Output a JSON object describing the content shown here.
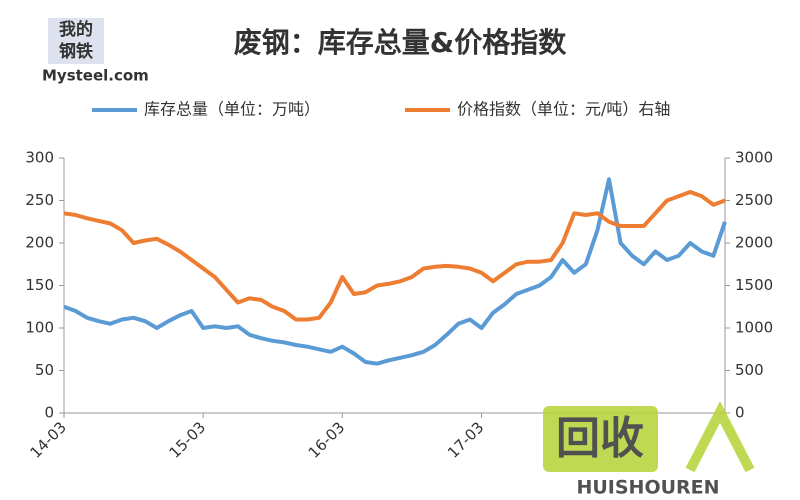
{
  "chart_data": {
    "type": "line",
    "title": "废钢：库存总量&价格指数",
    "logo": {
      "top": "我的",
      "bottom": "钢铁",
      "site": "Mysteel.com"
    },
    "watermark": {
      "text": "回收",
      "sub": "HUISHOUREN"
    },
    "x": [
      "14-03",
      "14-04",
      "14-05",
      "14-06",
      "14-07",
      "14-08",
      "14-09",
      "14-10",
      "14-11",
      "14-12",
      "15-01",
      "15-02",
      "15-03",
      "15-04",
      "15-05",
      "15-06",
      "15-07",
      "15-08",
      "15-09",
      "15-10",
      "15-11",
      "15-12",
      "16-01",
      "16-02",
      "16-03",
      "16-04",
      "16-05",
      "16-06",
      "16-07",
      "16-08",
      "16-09",
      "16-10",
      "16-11",
      "16-12",
      "17-01",
      "17-02",
      "17-03",
      "17-04",
      "17-05",
      "17-06",
      "17-07",
      "17-08",
      "17-09",
      "17-10",
      "17-11",
      "17-12",
      "18-01",
      "18-02",
      "18-03",
      "18-04",
      "18-05",
      "18-06",
      "18-07",
      "18-08",
      "18-09",
      "18-10",
      "18-11",
      "18-12"
    ],
    "xticks": [
      "14-03",
      "15-03",
      "16-03",
      "17-03"
    ],
    "ylim": [
      0,
      300
    ],
    "yticks": [
      0,
      50,
      100,
      150,
      200,
      250,
      300
    ],
    "y2lim": [
      0,
      3000
    ],
    "y2ticks": [
      0,
      500,
      1000,
      1500,
      2000,
      2500,
      3000
    ],
    "series": [
      {
        "name": "库存总量（单位：万吨）",
        "color": "#5b9bd5",
        "values": [
          125,
          120,
          112,
          108,
          105,
          110,
          112,
          108,
          100,
          108,
          115,
          120,
          100,
          102,
          100,
          102,
          92,
          88,
          85,
          83,
          80,
          78,
          75,
          72,
          78,
          70,
          60,
          58,
          62,
          65,
          68,
          72,
          80,
          92,
          105,
          110,
          100,
          118,
          128,
          140,
          145,
          150,
          160,
          180,
          165,
          175,
          215,
          275,
          200,
          185,
          175,
          190,
          180,
          185,
          200,
          190,
          185,
          225
        ]
      },
      {
        "name": "价格指数（单位：元/吨）右轴",
        "color": "#ed7d31",
        "axis": "y2",
        "values": [
          2350,
          2330,
          2290,
          2260,
          2230,
          2150,
          2000,
          2030,
          2050,
          1980,
          1900,
          1800,
          1700,
          1600,
          1450,
          1300,
          1350,
          1330,
          1250,
          1200,
          1100,
          1100,
          1120,
          1300,
          1600,
          1400,
          1420,
          1500,
          1520,
          1550,
          1600,
          1700,
          1720,
          1730,
          1720,
          1700,
          1650,
          1550,
          1650,
          1750,
          1780,
          1780,
          1800,
          2000,
          2350,
          2330,
          2350,
          2250,
          2200,
          2200,
          2200,
          2350,
          2500,
          2550,
          2600,
          2550,
          2450,
          2500
        ]
      }
    ]
  }
}
